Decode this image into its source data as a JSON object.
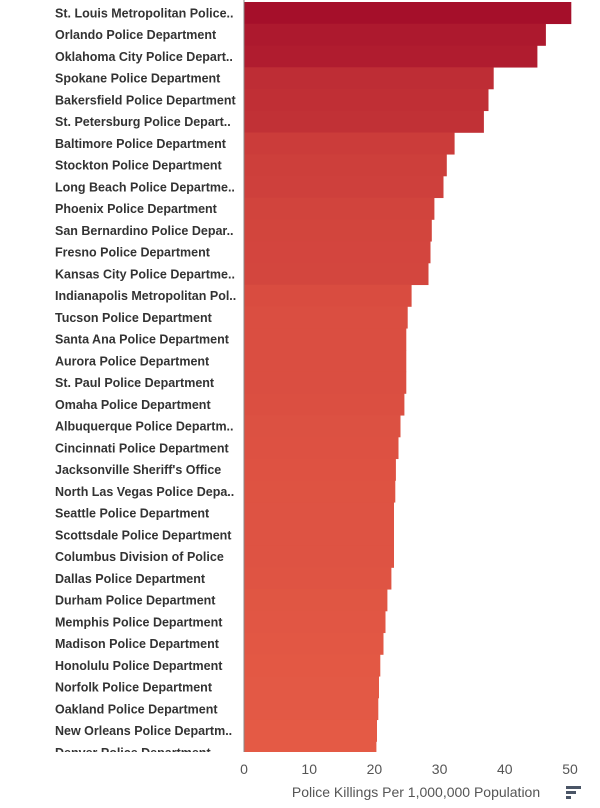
{
  "chart_data": {
    "type": "bar",
    "orientation": "horizontal",
    "title": "",
    "xlabel": "Police Killings Per 1,000,000 Population",
    "ylabel": "",
    "xlim": [
      0,
      52
    ],
    "xticks": [
      0,
      10,
      20,
      30,
      40,
      50
    ],
    "grid": false,
    "categories": [
      "St. Louis Metropolitan Police..",
      "Orlando Police Department",
      "Oklahoma City Police Depart..",
      "Spokane Police Department",
      "Bakersfield Police Department",
      "St. Petersburg Police Depart..",
      "Baltimore Police Department",
      "Stockton Police Department",
      "Long Beach Police Departme..",
      "Phoenix Police Department",
      "San Bernardino Police Depar..",
      "Fresno Police Department",
      "Kansas City Police Departme..",
      "Indianapolis Metropolitan Pol..",
      "Tucson Police Department",
      "Santa Ana Police Department",
      "Aurora Police Department",
      "St. Paul Police Department",
      "Omaha Police Department",
      "Albuquerque Police Departm..",
      "Cincinnati Police Department",
      "Jacksonville Sheriff's Office",
      "North Las Vegas Police Depa..",
      "Seattle Police Department",
      "Scottsdale Police Department",
      "Columbus Division of Police",
      "Dallas Police Department",
      "Durham Police Department",
      "Memphis Police Department",
      "Madison Police Department",
      "Honolulu Police Department",
      "Norfolk Police Department",
      "Oakland Police Department",
      "New Orleans Police Departm..",
      "Denver Police Department"
    ],
    "values": [
      50.2,
      46.3,
      45.0,
      38.3,
      37.5,
      36.8,
      32.3,
      31.1,
      30.6,
      29.2,
      28.8,
      28.6,
      28.3,
      25.7,
      25.1,
      24.9,
      24.9,
      24.9,
      24.6,
      24.0,
      23.7,
      23.3,
      23.2,
      23.0,
      23.0,
      23.0,
      22.6,
      22.0,
      21.7,
      21.4,
      20.9,
      20.7,
      20.6,
      20.4,
      20.3
    ],
    "color_scale": [
      "#e45a45",
      "#a50f2a"
    ]
  },
  "colors": {
    "axis": "#888888",
    "label": "#333333"
  },
  "icons": {
    "brand": "filter-lines-icon"
  }
}
